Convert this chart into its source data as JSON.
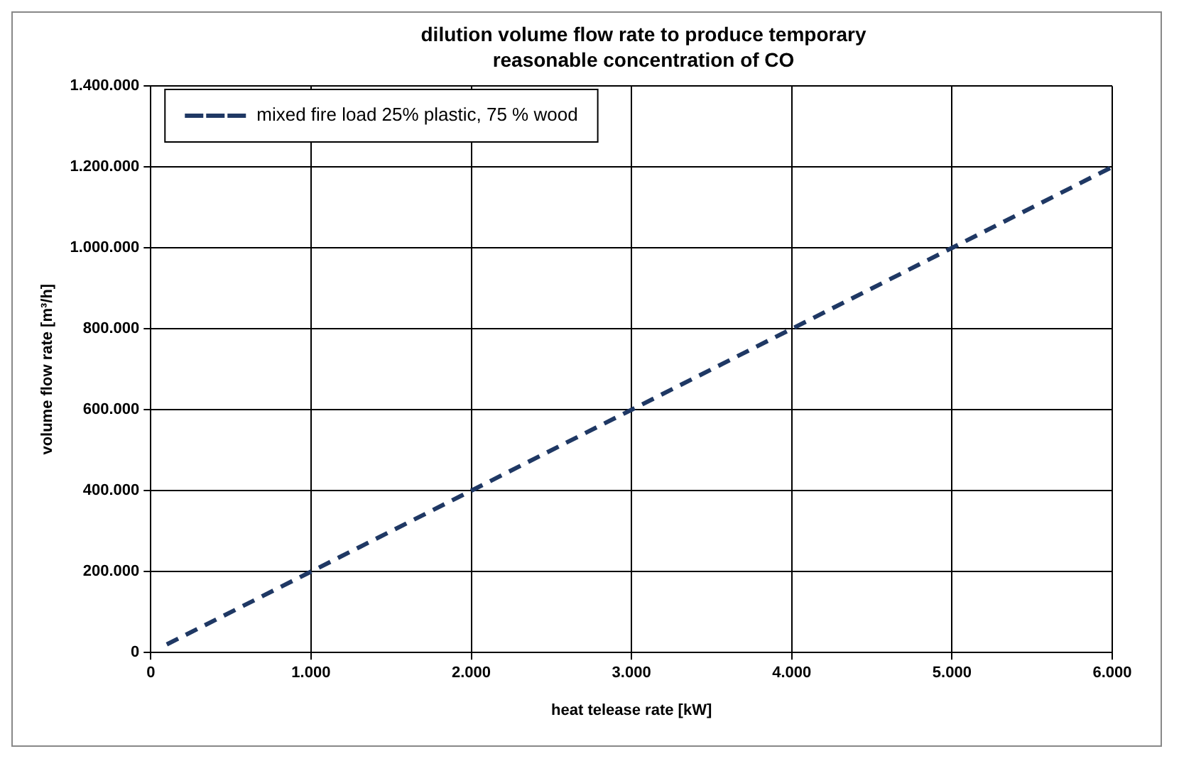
{
  "chart_data": {
    "type": "line",
    "title": "dilution volume flow rate to produce temporary reasonable concentration of CO",
    "xlabel": "heat telease rate [kW]",
    "ylabel": "volume flow rate [m³/h]",
    "series": [
      {
        "name": "mixed fire load 25% plastic, 75 % wood",
        "color": "#1f3864",
        "x": [
          100,
          1000,
          2000,
          3000,
          4000,
          5000,
          6000
        ],
        "values": [
          20000,
          200000,
          400000,
          600000,
          800000,
          1000000,
          1200000
        ]
      }
    ],
    "xlim": [
      0,
      6000
    ],
    "xticks": [
      0,
      {
        "value": 1000,
        "label": "1.000"
      },
      {
        "value": 2000,
        "label": "2.000"
      },
      {
        "value": 3000,
        "label": "3.000"
      },
      {
        "value": 4000,
        "label": "4.000"
      },
      {
        "value": 5000,
        "label": "5.000"
      },
      {
        "value": 6000,
        "label": "6.000"
      }
    ],
    "ylim": [
      0,
      1400000
    ],
    "yticks": [
      0,
      {
        "value": 200000,
        "label": "200.000"
      },
      {
        "value": 400000,
        "label": "400.000"
      },
      {
        "value": 600000,
        "label": "600.000"
      },
      {
        "value": 800000,
        "label": "800.000"
      },
      {
        "value": 1000000,
        "label": "1.000.000"
      },
      {
        "value": 1200000,
        "label": "1.200.000"
      },
      {
        "value": 1400000,
        "label": "1.400.000"
      }
    ],
    "grid": true,
    "legend": "top left",
    "marker": "none",
    "line_style": "dashed"
  }
}
